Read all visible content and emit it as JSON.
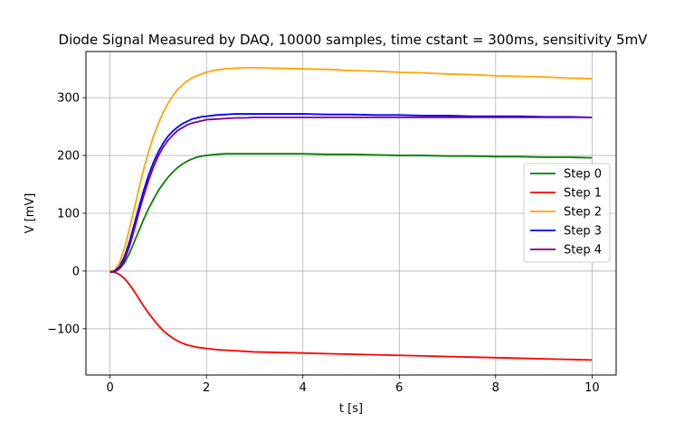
{
  "chart_data": {
    "type": "line",
    "title": "Diode Signal Measured by DAQ,  10000 samples, time cstant = 300ms, sensitivity 5mV",
    "xlabel": "t  [s]",
    "ylabel": "V  [mV]",
    "xlim": [
      -0.5,
      10.5
    ],
    "ylim": [
      -180,
      380
    ],
    "xticks": [
      0,
      2,
      4,
      6,
      8,
      10
    ],
    "yticks": [
      -100,
      0,
      100,
      200,
      300
    ],
    "grid": true,
    "legend_position": "center-right",
    "series": [
      {
        "name": "Step 0",
        "color": "#008000",
        "x": [
          0,
          0.1,
          0.2,
          0.3,
          0.4,
          0.5,
          0.6,
          0.7,
          0.8,
          0.9,
          1.0,
          1.1,
          1.2,
          1.3,
          1.4,
          1.5,
          1.6,
          1.7,
          1.8,
          1.9,
          2.0,
          2.2,
          2.4,
          2.6,
          2.8,
          3.0,
          3.5,
          4.0,
          4.5,
          5.0,
          5.5,
          6.0,
          6.5,
          7.0,
          7.5,
          8.0,
          8.5,
          9.0,
          9.5,
          10.0
        ],
        "y": [
          -2,
          -1,
          4,
          14,
          30,
          50,
          70,
          90,
          108,
          124,
          139,
          151,
          162,
          171,
          179,
          185,
          190,
          194,
          197,
          199,
          200,
          202,
          203,
          203,
          203,
          203,
          203,
          203,
          202,
          202,
          201,
          200,
          200,
          199,
          199,
          198,
          198,
          197,
          197,
          196
        ]
      },
      {
        "name": "Step 1",
        "color": "#ff0000",
        "x": [
          0,
          0.1,
          0.2,
          0.3,
          0.4,
          0.5,
          0.6,
          0.7,
          0.8,
          0.9,
          1.0,
          1.1,
          1.2,
          1.3,
          1.4,
          1.5,
          1.6,
          1.7,
          1.8,
          1.9,
          2.0,
          2.2,
          2.4,
          2.6,
          2.8,
          3.0,
          3.5,
          4.0,
          4.5,
          5.0,
          5.5,
          6.0,
          6.5,
          7.0,
          7.5,
          8.0,
          8.5,
          9.0,
          9.5,
          10.0
        ],
        "y": [
          0,
          -2,
          -6,
          -13,
          -23,
          -35,
          -48,
          -61,
          -73,
          -84,
          -94,
          -103,
          -110,
          -116,
          -121,
          -125,
          -128,
          -130,
          -132,
          -133,
          -134,
          -136,
          -137,
          -138,
          -139,
          -140,
          -141,
          -142,
          -143,
          -144,
          -145,
          -146,
          -147,
          -148,
          -149,
          -150,
          -151,
          -152,
          -153,
          -154
        ]
      },
      {
        "name": "Step 2",
        "color": "#ffa500",
        "x": [
          0,
          0.1,
          0.2,
          0.3,
          0.4,
          0.5,
          0.6,
          0.7,
          0.8,
          0.9,
          1.0,
          1.1,
          1.2,
          1.3,
          1.4,
          1.5,
          1.6,
          1.7,
          1.8,
          1.9,
          2.0,
          2.2,
          2.4,
          2.6,
          2.8,
          3.0,
          3.5,
          4.0,
          4.5,
          5.0,
          5.5,
          6.0,
          6.5,
          7.0,
          7.5,
          8.0,
          8.5,
          9.0,
          9.5,
          10.0
        ],
        "y": [
          -2,
          2,
          15,
          40,
          72,
          107,
          143,
          177,
          207,
          233,
          255,
          274,
          290,
          303,
          314,
          322,
          329,
          334,
          338,
          341,
          344,
          348,
          350,
          351,
          352,
          352,
          351,
          350,
          349,
          347,
          346,
          344,
          343,
          341,
          340,
          338,
          337,
          336,
          334,
          333
        ]
      },
      {
        "name": "Step 3",
        "color": "#0000ff",
        "x": [
          0,
          0.1,
          0.2,
          0.3,
          0.4,
          0.5,
          0.6,
          0.7,
          0.8,
          0.9,
          1.0,
          1.1,
          1.2,
          1.3,
          1.4,
          1.5,
          1.6,
          1.7,
          1.8,
          1.9,
          2.0,
          2.2,
          2.4,
          2.6,
          2.8,
          3.0,
          3.5,
          4.0,
          4.5,
          5.0,
          5.5,
          6.0,
          6.5,
          7.0,
          7.5,
          8.0,
          8.5,
          9.0,
          9.5,
          10.0
        ],
        "y": [
          -2,
          0,
          8,
          25,
          50,
          80,
          111,
          140,
          166,
          188,
          206,
          221,
          233,
          242,
          249,
          255,
          259,
          263,
          265,
          267,
          268,
          270,
          271,
          272,
          272,
          272,
          272,
          272,
          271,
          271,
          270,
          270,
          269,
          269,
          268,
          268,
          268,
          267,
          267,
          266
        ]
      },
      {
        "name": "Step 4",
        "color": "#800080",
        "x": [
          0,
          0.1,
          0.2,
          0.3,
          0.4,
          0.5,
          0.6,
          0.7,
          0.8,
          0.9,
          1.0,
          1.1,
          1.2,
          1.3,
          1.4,
          1.5,
          1.6,
          1.7,
          1.8,
          1.9,
          2.0,
          2.2,
          2.4,
          2.6,
          2.8,
          3.0,
          3.5,
          4.0,
          4.5,
          5.0,
          5.5,
          6.0,
          6.5,
          7.0,
          7.5,
          8.0,
          8.5,
          9.0,
          9.5,
          10.0
        ],
        "y": [
          -2,
          -1,
          5,
          19,
          42,
          71,
          102,
          131,
          157,
          180,
          199,
          214,
          226,
          235,
          243,
          248,
          253,
          256,
          258,
          260,
          262,
          263,
          264,
          265,
          265,
          266,
          266,
          266,
          266,
          266,
          266,
          266,
          266,
          266,
          266,
          266,
          266,
          266,
          266,
          266
        ]
      }
    ]
  }
}
